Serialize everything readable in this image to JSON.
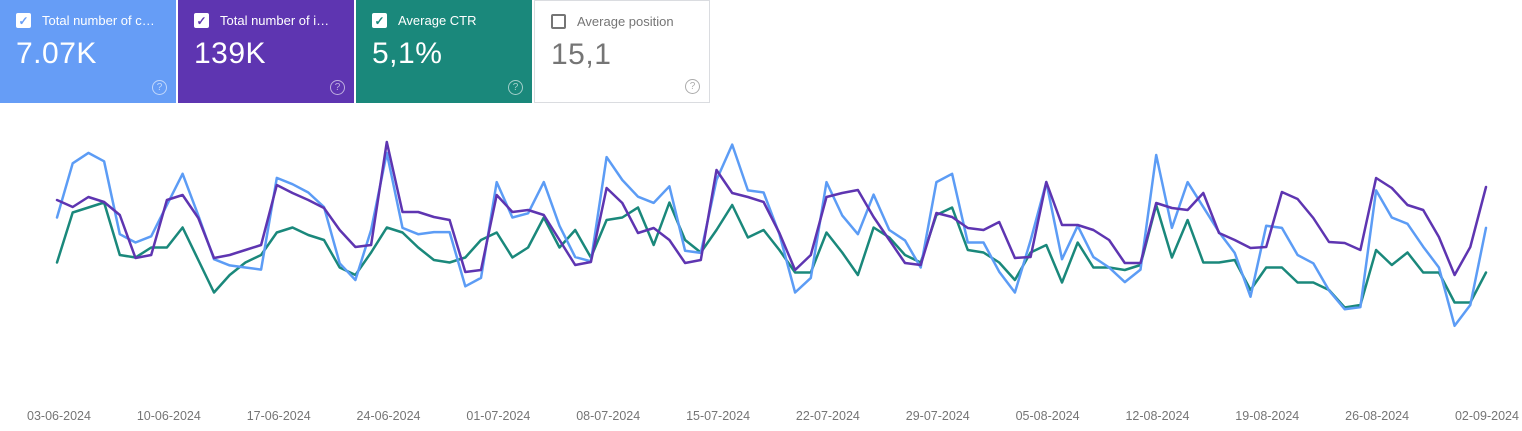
{
  "page": {
    "background": "#ffffff",
    "app": "Search performance overview"
  },
  "icons": {
    "help": "?",
    "checkbox_check": "✓"
  },
  "cards": [
    {
      "id": "clicks",
      "label": "Total number of c…",
      "value": "7.07K",
      "checked": true,
      "bg": "#669df6",
      "fg": "#ffffff",
      "border": null
    },
    {
      "id": "impressions",
      "label": "Total number of i…",
      "value": "139K",
      "checked": true,
      "bg": "#5e35b1",
      "fg": "#ffffff",
      "border": null
    },
    {
      "id": "ctr",
      "label": "Average CTR",
      "value": "5,1%",
      "checked": true,
      "bg": "#1a887b",
      "fg": "#ffffff",
      "border": null
    },
    {
      "id": "position",
      "label": "Average position",
      "value": "15,1",
      "checked": false,
      "bg": "#ffffff",
      "fg": "#757575",
      "border": "#dadce0"
    }
  ],
  "chart_data": {
    "type": "line",
    "frequency": "daily",
    "x_start_date": "2024-06-03",
    "x_end_date": "2024-09-02",
    "tick_labels": [
      "03-06-2024",
      "10-06-2024",
      "17-06-2024",
      "24-06-2024",
      "01-07-2024",
      "08-07-2024",
      "15-07-2024",
      "22-07-2024",
      "29-07-2024",
      "05-08-2024",
      "12-08-2024",
      "19-08-2024",
      "26-08-2024",
      "02-09-2024"
    ],
    "gridlines": false,
    "y_axis_labels": false,
    "legend_position": "cards-above",
    "series": [
      {
        "id": "ctr",
        "name": "Average CTR (%)",
        "color": "#1a887b",
        "ylim": [
          1.9,
          9.5
        ],
        "values": [
          4.6,
          6.6,
          6.8,
          7.0,
          4.9,
          4.8,
          5.2,
          5.2,
          6.0,
          4.7,
          3.4,
          4.1,
          4.6,
          4.9,
          5.8,
          6.0,
          5.7,
          5.5,
          4.4,
          4.1,
          5.0,
          6.0,
          5.8,
          5.2,
          4.7,
          4.6,
          4.8,
          5.5,
          5.8,
          4.8,
          5.2,
          6.4,
          5.2,
          5.9,
          4.8,
          6.3,
          6.4,
          6.8,
          5.3,
          7.0,
          5.5,
          5.0,
          5.9,
          6.9,
          5.6,
          5.9,
          5.1,
          4.2,
          4.2,
          5.8,
          5.0,
          4.1,
          6.0,
          5.6,
          4.9,
          4.6,
          6.5,
          6.8,
          5.1,
          5.0,
          4.6,
          3.9,
          5.0,
          5.3,
          3.8,
          5.4,
          4.4,
          4.4,
          4.3,
          4.5,
          6.9,
          4.8,
          6.3,
          4.6,
          4.6,
          4.7,
          3.5,
          4.4,
          4.4,
          3.8,
          3.8,
          3.5,
          2.8,
          2.9,
          5.1,
          4.5,
          5.0,
          4.2,
          4.2,
          3.0,
          3.0,
          4.2
        ]
      },
      {
        "id": "clicks",
        "name": "Total number of clicks",
        "color": "#5c9cf5",
        "ylim": [
          35,
          126.2
        ],
        "values": [
          89,
          115,
          120,
          116,
          81,
          77,
          80,
          95,
          110,
          90,
          69,
          66,
          65,
          64,
          108,
          105,
          101,
          94,
          67,
          59,
          83,
          120,
          84,
          81,
          82,
          82,
          56,
          60,
          106,
          89,
          91,
          106,
          85,
          70,
          68,
          118,
          107,
          99,
          96,
          104,
          73,
          72,
          107,
          124,
          102,
          101,
          81,
          53,
          60,
          106,
          90,
          81,
          100,
          83,
          78,
          65,
          106,
          110,
          77,
          77,
          63,
          53,
          78,
          106,
          69,
          85,
          70,
          65,
          58,
          64,
          119,
          84,
          106,
          94,
          82,
          72,
          51,
          85,
          84,
          71,
          67,
          54,
          45,
          46,
          102,
          89,
          86,
          75,
          65,
          37,
          47,
          84
        ]
      },
      {
        "id": "impressions",
        "name": "Total number of impressions",
        "color": "#5e35b1",
        "ylim": [
          120,
          2637.5
        ],
        "values": [
          1843,
          1750,
          1882,
          1816,
          1644,
          1074,
          1114,
          1843,
          1909,
          1604,
          1074,
          1114,
          1180,
          1246,
          2041,
          1935,
          1843,
          1737,
          1445,
          1220,
          1246,
          2611,
          1684,
          1684,
          1617,
          1578,
          889,
          915,
          1909,
          1684,
          1710,
          1644,
          1313,
          981,
          1021,
          2002,
          1803,
          1405,
          1472,
          1313,
          1008,
          1048,
          2240,
          1935,
          1882,
          1816,
          1405,
          915,
          1114,
          1882,
          1935,
          1975,
          1617,
          1313,
          1008,
          981,
          1670,
          1617,
          1472,
          1445,
          1551,
          1074,
          1087,
          2081,
          1511,
          1511,
          1445,
          1313,
          1008,
          1008,
          1803,
          1737,
          1710,
          1935,
          1405,
          1313,
          1207,
          1220,
          1949,
          1856,
          1604,
          1286,
          1273,
          1180,
          2134,
          2002,
          1776,
          1710,
          1352,
          849,
          1220,
          2015
        ]
      }
    ]
  }
}
